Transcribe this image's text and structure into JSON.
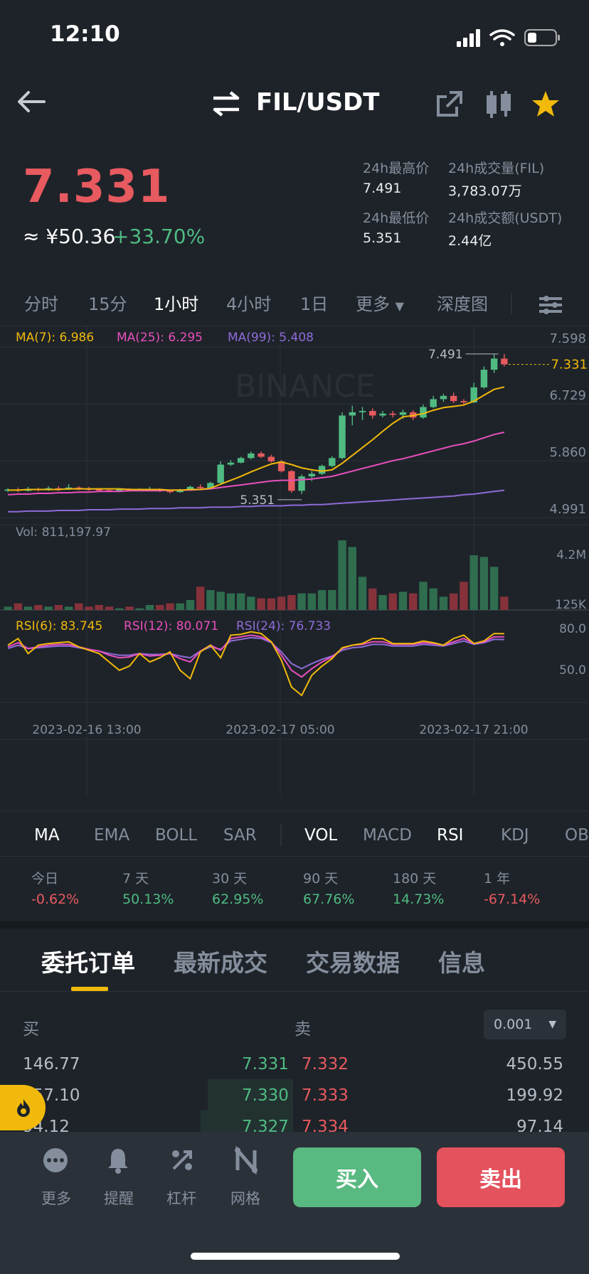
{
  "status_bar": {
    "time": "12:10"
  },
  "header": {
    "pair": "FIL/USDT"
  },
  "ticker": {
    "last_price": "7.331",
    "cny_price": "≈ ¥50.36",
    "change_pct": "+33.70%",
    "stats": [
      {
        "label": "24h最高价",
        "value": "7.491"
      },
      {
        "label": "24h成交量(FIL)",
        "value": "3,783.07万"
      },
      {
        "label": "24h最低价",
        "value": "5.351"
      },
      {
        "label": "24h成交额(USDT)",
        "value": "2.44亿"
      }
    ]
  },
  "intervals": [
    "分时",
    "15分",
    "1小时",
    "4小时",
    "1日",
    "更多",
    "深度图"
  ],
  "active_interval": "1小时",
  "chart_data": {
    "type": "candlestick",
    "ma_legend": [
      {
        "label": "MA(7): 6.986",
        "color": "#f0b90b"
      },
      {
        "label": "MA(25): 6.295",
        "color": "#e84fbd"
      },
      {
        "label": "MA(99): 5.408",
        "color": "#8e6bd8"
      }
    ],
    "y_ticks": [
      "7.598",
      "6.729",
      "5.860",
      "4.991"
    ],
    "y_ticks_values": [
      7.598,
      6.729,
      5.86,
      4.991
    ],
    "current_price_label": "7.331",
    "current_price": 7.331,
    "high_label": "7.491",
    "high": 7.491,
    "low_label": "5.351",
    "low": 5.351,
    "watermark": "BINANCE",
    "candles": [
      [
        5.4,
        5.42,
        5.44,
        5.38
      ],
      [
        5.42,
        5.4,
        5.45,
        5.38
      ],
      [
        5.4,
        5.43,
        5.46,
        5.39
      ],
      [
        5.43,
        5.41,
        5.45,
        5.39
      ],
      [
        5.41,
        5.44,
        5.47,
        5.4
      ],
      [
        5.44,
        5.42,
        5.47,
        5.4
      ],
      [
        5.42,
        5.45,
        5.5,
        5.41
      ],
      [
        5.45,
        5.43,
        5.47,
        5.41
      ],
      [
        5.43,
        5.42,
        5.46,
        5.4
      ],
      [
        5.42,
        5.41,
        5.44,
        5.39
      ],
      [
        5.41,
        5.4,
        5.43,
        5.38
      ],
      [
        5.4,
        5.42,
        5.44,
        5.39
      ],
      [
        5.42,
        5.41,
        5.44,
        5.39
      ],
      [
        5.41,
        5.42,
        5.44,
        5.4
      ],
      [
        5.42,
        5.43,
        5.46,
        5.41
      ],
      [
        5.43,
        5.4,
        5.44,
        5.38
      ],
      [
        5.4,
        5.38,
        5.42,
        5.36
      ],
      [
        5.38,
        5.41,
        5.43,
        5.37
      ],
      [
        5.41,
        5.46,
        5.48,
        5.4
      ],
      [
        5.46,
        5.44,
        5.5,
        5.42
      ],
      [
        5.44,
        5.52,
        5.54,
        5.43
      ],
      [
        5.52,
        5.8,
        5.85,
        5.51
      ],
      [
        5.8,
        5.83,
        5.87,
        5.78
      ],
      [
        5.83,
        5.9,
        5.92,
        5.82
      ],
      [
        5.9,
        5.97,
        6.0,
        5.88
      ],
      [
        5.97,
        5.92,
        6.0,
        5.9
      ],
      [
        5.92,
        5.85,
        5.95,
        5.83
      ],
      [
        5.85,
        5.7,
        5.87,
        5.68
      ],
      [
        5.7,
        5.4,
        5.72,
        5.37
      ],
      [
        5.4,
        5.62,
        5.65,
        5.351
      ],
      [
        5.62,
        5.66,
        5.7,
        5.55
      ],
      [
        5.66,
        5.78,
        5.8,
        5.64
      ],
      [
        5.78,
        5.9,
        5.93,
        5.76
      ],
      [
        5.9,
        6.55,
        6.6,
        5.88
      ],
      [
        6.55,
        6.6,
        6.7,
        6.4
      ],
      [
        6.6,
        6.62,
        6.68,
        6.48
      ],
      [
        6.62,
        6.55,
        6.66,
        6.5
      ],
      [
        6.55,
        6.58,
        6.62,
        6.52
      ],
      [
        6.58,
        6.56,
        6.62,
        6.52
      ],
      [
        6.56,
        6.6,
        6.64,
        6.5
      ],
      [
        6.6,
        6.52,
        6.63,
        6.48
      ],
      [
        6.52,
        6.68,
        6.72,
        6.5
      ],
      [
        6.68,
        6.8,
        6.85,
        6.66
      ],
      [
        6.8,
        6.85,
        6.88,
        6.76
      ],
      [
        6.85,
        6.77,
        6.9,
        6.74
      ],
      [
        6.77,
        6.75,
        6.8,
        6.72
      ],
      [
        6.75,
        6.98,
        7.05,
        6.74
      ],
      [
        6.98,
        7.25,
        7.3,
        6.96
      ],
      [
        7.25,
        7.42,
        7.491,
        7.2
      ],
      [
        7.42,
        7.331,
        7.491,
        7.3
      ]
    ],
    "ma7": [
      5.41,
      5.41,
      5.42,
      5.42,
      5.42,
      5.42,
      5.43,
      5.43,
      5.43,
      5.43,
      5.43,
      5.43,
      5.42,
      5.42,
      5.42,
      5.42,
      5.41,
      5.41,
      5.42,
      5.42,
      5.44,
      5.5,
      5.56,
      5.62,
      5.69,
      5.75,
      5.81,
      5.84,
      5.8,
      5.75,
      5.72,
      5.7,
      5.72,
      5.82,
      5.94,
      6.06,
      6.18,
      6.31,
      6.43,
      6.53,
      6.55,
      6.58,
      6.63,
      6.67,
      6.69,
      6.71,
      6.77,
      6.86,
      6.95,
      6.986
    ],
    "ma25": [
      5.34,
      5.35,
      5.35,
      5.36,
      5.36,
      5.37,
      5.37,
      5.38,
      5.38,
      5.39,
      5.39,
      5.39,
      5.4,
      5.4,
      5.4,
      5.4,
      5.41,
      5.41,
      5.41,
      5.42,
      5.43,
      5.45,
      5.47,
      5.49,
      5.51,
      5.53,
      5.55,
      5.56,
      5.56,
      5.57,
      5.58,
      5.6,
      5.62,
      5.66,
      5.7,
      5.74,
      5.78,
      5.82,
      5.86,
      5.89,
      5.93,
      5.97,
      6.01,
      6.05,
      6.09,
      6.12,
      6.16,
      6.21,
      6.26,
      6.295
    ],
    "ma99": [
      5.08,
      5.08,
      5.09,
      5.09,
      5.09,
      5.1,
      5.1,
      5.1,
      5.11,
      5.11,
      5.11,
      5.12,
      5.12,
      5.12,
      5.13,
      5.13,
      5.13,
      5.14,
      5.14,
      5.14,
      5.15,
      5.15,
      5.15,
      5.16,
      5.16,
      5.17,
      5.17,
      5.17,
      5.18,
      5.18,
      5.19,
      5.19,
      5.2,
      5.21,
      5.22,
      5.23,
      5.24,
      5.25,
      5.26,
      5.27,
      5.28,
      5.29,
      5.3,
      5.31,
      5.32,
      5.34,
      5.35,
      5.37,
      5.39,
      5.408
    ],
    "volume_label": "Vol: 811,197.97",
    "volume_y_ticks": [
      "4.2M",
      "125K"
    ],
    "volume": [
      0.2,
      0.4,
      0.2,
      0.3,
      0.2,
      0.3,
      0.2,
      0.4,
      0.2,
      0.3,
      0.2,
      0.1,
      0.2,
      0.1,
      0.3,
      0.3,
      0.4,
      0.4,
      0.6,
      1.4,
      1.2,
      1.1,
      1.0,
      1.0,
      0.8,
      0.7,
      0.7,
      0.8,
      0.9,
      1.0,
      1.0,
      1.2,
      1.2,
      4.2,
      3.8,
      2.0,
      1.3,
      0.9,
      1.0,
      1.1,
      1.0,
      1.7,
      1.3,
      0.8,
      1.0,
      1.7,
      3.3,
      3.2,
      2.6,
      0.8
    ],
    "rsi_legend": [
      {
        "label": "RSI(6): 83.745",
        "color": "#f0b90b"
      },
      {
        "label": "RSI(12): 80.071",
        "color": "#e84fbd"
      },
      {
        "label": "RSI(24): 76.733",
        "color": "#8e6bd8"
      }
    ],
    "rsi_y_ticks": [
      "80.0",
      "50.0"
    ],
    "rsi6": [
      70,
      78,
      60,
      70,
      72,
      73,
      74,
      68,
      64,
      60,
      50,
      40,
      45,
      60,
      50,
      55,
      62,
      40,
      30,
      62,
      70,
      55,
      82,
      83,
      86,
      84,
      74,
      52,
      20,
      10,
      34,
      45,
      54,
      67,
      70,
      72,
      78,
      78,
      72,
      72,
      72,
      75,
      73,
      70,
      78,
      82,
      72,
      75,
      84,
      83.745
    ],
    "rsi12": [
      68,
      73,
      66,
      68,
      70,
      71,
      71,
      68,
      65,
      63,
      58,
      55,
      56,
      60,
      57,
      58,
      60,
      54,
      50,
      63,
      70,
      64,
      78,
      80,
      82,
      80,
      74,
      58,
      40,
      32,
      42,
      50,
      56,
      66,
      70,
      71,
      74,
      74,
      71,
      71,
      71,
      73,
      72,
      70,
      74,
      78,
      72,
      74,
      80,
      80.071
    ],
    "rsi24": [
      66,
      70,
      66,
      67,
      68,
      69,
      69,
      67,
      65,
      63,
      60,
      58,
      58,
      60,
      59,
      59,
      60,
      57,
      55,
      63,
      68,
      65,
      75,
      77,
      79,
      78,
      73,
      62,
      48,
      42,
      48,
      53,
      57,
      64,
      67,
      68,
      71,
      71,
      69,
      69,
      69,
      71,
      70,
      69,
      72,
      75,
      71,
      73,
      77,
      76.733
    ],
    "x_labels": [
      "2023-02-16 13:00",
      "2023-02-17 05:00",
      "2023-02-17 21:00"
    ]
  },
  "indicator_tabs": [
    "MA",
    "EMA",
    "BOLL",
    "SAR",
    "VOL",
    "MACD",
    "RSI",
    "KDJ",
    "OB"
  ],
  "performance": [
    {
      "label": "今日",
      "value": "-0.62%",
      "dir": "red"
    },
    {
      "label": "7 天",
      "value": "50.13%",
      "dir": "green"
    },
    {
      "label": "30 天",
      "value": "62.95%",
      "dir": "green"
    },
    {
      "label": "90 天",
      "value": "67.76%",
      "dir": "green"
    },
    {
      "label": "180 天",
      "value": "14.73%",
      "dir": "green"
    },
    {
      "label": "1 年",
      "value": "-67.14%",
      "dir": "red"
    }
  ],
  "orderbook_tabs": [
    "委托订单",
    "最新成交",
    "交易数据",
    "信息"
  ],
  "orderbook": {
    "buy_label": "买",
    "sell_label": "卖",
    "precision": "0.001",
    "rows": [
      {
        "bid_qty": "146.77",
        "bid_price": "7.331",
        "ask_price": "7.332",
        "ask_qty": "450.55",
        "depth": 0
      },
      {
        "bid_qty": "957.10",
        "bid_price": "7.330",
        "ask_price": "7.333",
        "ask_qty": "199.92",
        "depth": 0.28
      },
      {
        "bid_qty": "94.12",
        "bid_price": "7.327",
        "ask_price": "7.334",
        "ask_qty": "97.14",
        "depth": 0.3
      }
    ]
  },
  "bottom_nav": {
    "items": [
      {
        "label": "更多",
        "icon": "more-icon"
      },
      {
        "label": "提醒",
        "icon": "bell-icon"
      },
      {
        "label": "杠杆",
        "icon": "percent-icon"
      },
      {
        "label": "网格",
        "icon": "grid-icon"
      }
    ],
    "buy": "买入",
    "sell": "卖出"
  }
}
